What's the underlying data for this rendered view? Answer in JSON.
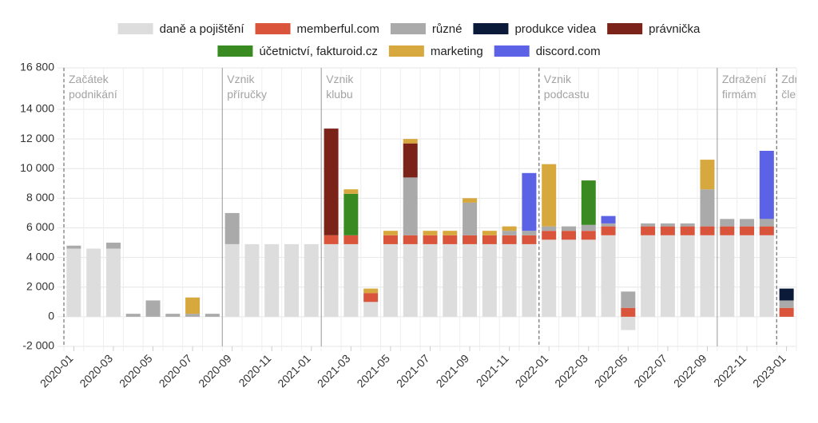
{
  "chart_data": {
    "type": "bar",
    "stacked": true,
    "legend_position": "top",
    "grid": true,
    "ylim": [
      -2000,
      16800
    ],
    "yticks": [
      {
        "value": 16800,
        "label": "16 800"
      },
      {
        "value": 14000,
        "label": "14 000"
      },
      {
        "value": 12000,
        "label": "12 000"
      },
      {
        "value": 10000,
        "label": "10 000"
      },
      {
        "value": 8000,
        "label": "8 000"
      },
      {
        "value": 6000,
        "label": "6 000"
      },
      {
        "value": 4000,
        "label": "4 000"
      },
      {
        "value": 2000,
        "label": "2 000"
      },
      {
        "value": 0,
        "label": "0"
      },
      {
        "value": -2000,
        "label": "-2 000"
      }
    ],
    "categories": [
      "2020-01",
      "2020-02",
      "2020-03",
      "2020-04",
      "2020-05",
      "2020-06",
      "2020-07",
      "2020-08",
      "2020-09",
      "2020-10",
      "2020-11",
      "2020-12",
      "2021-01",
      "2021-02",
      "2021-03",
      "2021-04",
      "2021-05",
      "2021-06",
      "2021-07",
      "2021-08",
      "2021-09",
      "2021-10",
      "2021-11",
      "2021-12",
      "2022-01",
      "2022-02",
      "2022-03",
      "2022-04",
      "2022-05",
      "2022-06",
      "2022-07",
      "2022-08",
      "2022-09",
      "2022-10",
      "2022-11",
      "2022-12",
      "2023-01"
    ],
    "xtick_labels": [
      "2020-01",
      "2020-03",
      "2020-05",
      "2020-07",
      "2020-09",
      "2020-11",
      "2021-01",
      "2021-03",
      "2021-05",
      "2021-07",
      "2021-09",
      "2021-11",
      "2022-01",
      "2022-03",
      "2022-05",
      "2022-07",
      "2022-09",
      "2022-11",
      "2023-01"
    ],
    "series": [
      {
        "name": "daně a pojištění",
        "color": "#dddddd",
        "values": [
          4600,
          4600,
          4600,
          0,
          0,
          0,
          0,
          0,
          4900,
          4900,
          4900,
          4900,
          4900,
          4900,
          4900,
          1000,
          4900,
          4900,
          4900,
          4900,
          4900,
          4900,
          4900,
          4900,
          5200,
          5200,
          5200,
          5500,
          -900,
          5500,
          5500,
          5500,
          5500,
          5500,
          5500,
          5500,
          0
        ]
      },
      {
        "name": "memberful.com",
        "color": "#d9543a",
        "values": [
          0,
          0,
          0,
          0,
          0,
          0,
          0,
          0,
          0,
          0,
          0,
          0,
          0,
          600,
          600,
          600,
          600,
          600,
          600,
          600,
          600,
          600,
          600,
          600,
          600,
          600,
          600,
          600,
          600,
          600,
          600,
          600,
          600,
          600,
          600,
          600,
          600
        ]
      },
      {
        "name": "různé",
        "color": "#aaaaaa",
        "values": [
          200,
          0,
          400,
          200,
          1100,
          200,
          200,
          200,
          2100,
          0,
          0,
          0,
          0,
          0,
          0,
          0,
          0,
          3900,
          0,
          0,
          2200,
          0,
          300,
          300,
          300,
          300,
          400,
          200,
          1100,
          200,
          200,
          200,
          2500,
          500,
          500,
          500,
          500
        ]
      },
      {
        "name": "produkce videa",
        "color": "#0c1a3a",
        "values": [
          0,
          0,
          0,
          0,
          0,
          0,
          0,
          0,
          0,
          0,
          0,
          0,
          0,
          0,
          0,
          0,
          0,
          0,
          0,
          0,
          0,
          0,
          0,
          0,
          0,
          0,
          0,
          0,
          0,
          0,
          0,
          0,
          0,
          0,
          0,
          0,
          800
        ]
      },
      {
        "name": "právnička",
        "color": "#7b2318",
        "values": [
          0,
          0,
          0,
          0,
          0,
          0,
          0,
          0,
          0,
          0,
          0,
          0,
          0,
          7200,
          0,
          0,
          0,
          2300,
          0,
          0,
          0,
          0,
          0,
          0,
          0,
          0,
          0,
          0,
          0,
          0,
          0,
          0,
          0,
          0,
          0,
          0,
          0
        ]
      },
      {
        "name": "účetnictví, fakturoid.cz",
        "color": "#3a8a22",
        "values": [
          0,
          0,
          0,
          0,
          0,
          0,
          0,
          0,
          0,
          0,
          0,
          0,
          0,
          0,
          2800,
          0,
          0,
          0,
          0,
          0,
          0,
          0,
          0,
          0,
          0,
          0,
          3000,
          0,
          0,
          0,
          0,
          0,
          0,
          0,
          0,
          0,
          0
        ]
      },
      {
        "name": "marketing",
        "color": "#d6a83e",
        "values": [
          0,
          0,
          0,
          0,
          0,
          0,
          1100,
          0,
          0,
          0,
          0,
          0,
          0,
          0,
          300,
          300,
          300,
          300,
          300,
          300,
          300,
          300,
          300,
          0,
          4200,
          0,
          0,
          0,
          0,
          0,
          0,
          0,
          2000,
          0,
          0,
          0,
          0
        ]
      },
      {
        "name": "discord.com",
        "color": "#5b62e6",
        "values": [
          0,
          0,
          0,
          0,
          0,
          0,
          0,
          0,
          0,
          0,
          0,
          0,
          0,
          0,
          0,
          0,
          0,
          0,
          0,
          0,
          0,
          0,
          0,
          3900,
          0,
          0,
          0,
          500,
          0,
          0,
          0,
          0,
          0,
          0,
          0,
          4600,
          0
        ]
      }
    ],
    "annotations": [
      {
        "x": "2020-01",
        "label": [
          "Začátek",
          "podnikání"
        ],
        "style": "dashed"
      },
      {
        "x": "2020-09",
        "label": [
          "Vznik",
          "příručky"
        ],
        "style": "solid"
      },
      {
        "x": "2021-02",
        "label": [
          "Vznik",
          "klubu"
        ],
        "style": "solid"
      },
      {
        "x": "2022-01",
        "label": [
          "Vznik",
          "podcastu"
        ],
        "style": "dashed"
      },
      {
        "x": "2022-10",
        "label": [
          "Zdražení",
          "firmám"
        ],
        "style": "solid"
      },
      {
        "x": "2023-01",
        "label": [
          "Zdražení",
          "členům"
        ],
        "style": "dashed"
      }
    ]
  }
}
